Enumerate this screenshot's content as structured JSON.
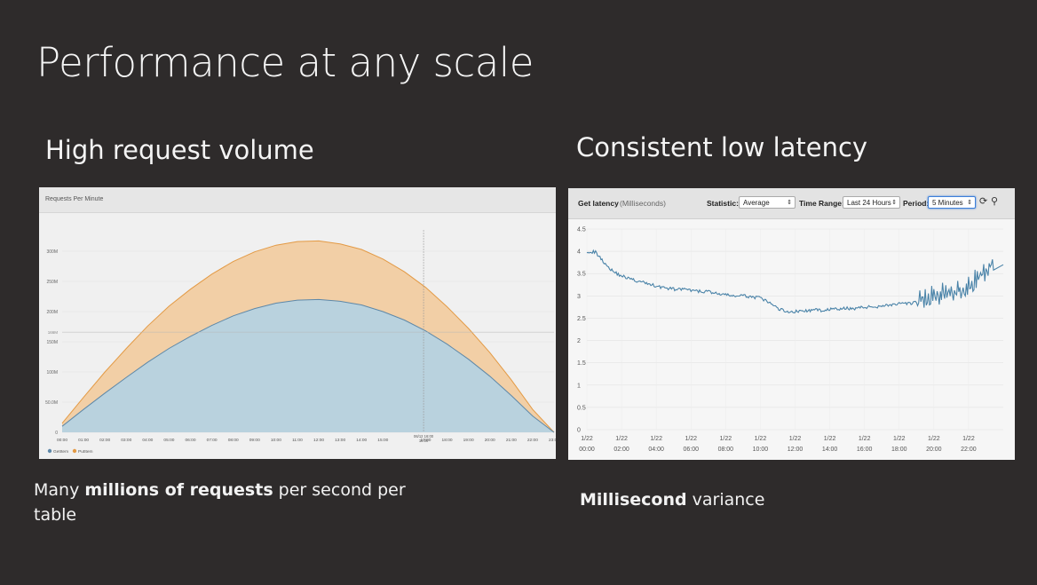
{
  "slide": {
    "title": "Performance at any scale",
    "left_heading": "High request volume",
    "right_heading": "Consistent low latency",
    "left_caption": {
      "pre": "Many ",
      "bold": "millions of requests",
      "post": " per second per table"
    },
    "right_caption": {
      "bold": "Millisecond",
      "post": " variance"
    }
  },
  "colors": {
    "background": "#2e2b2b",
    "gets_fill": "#b9d2de",
    "gets_line": "#5e88a8",
    "puts_fill": "#f2cfa6",
    "puts_line": "#e39a45",
    "latency_line": "#4a83a8"
  },
  "chart_data": [
    {
      "type": "area",
      "title": "Requests Per Minute",
      "stacked": true,
      "x": [
        "00:00",
        "01:00",
        "02:00",
        "03:00",
        "04:00",
        "05:00",
        "06:00",
        "07:00",
        "08:00",
        "09:00",
        "10:00",
        "11:00",
        "12:00",
        "13:00",
        "14:00",
        "15:00",
        "16:00",
        "17:00",
        "18:00",
        "19:00",
        "20:00",
        "21:00",
        "22:00",
        "23:00"
      ],
      "series": [
        {
          "name": "GetItem",
          "values": [
            10,
            38,
            65,
            91,
            116,
            139,
            159,
            177,
            193,
            205,
            214,
            219,
            220,
            217,
            211,
            200,
            186,
            168,
            146,
            121,
            93,
            61,
            27,
            0
          ]
        },
        {
          "name": "PutItem",
          "values": [
            5,
            20,
            35,
            48,
            60,
            70,
            78,
            85,
            90,
            94,
            96,
            97,
            97,
            95,
            92,
            87,
            80,
            72,
            62,
            51,
            39,
            26,
            11,
            0
          ]
        }
      ],
      "ylim": [
        0,
        350
      ],
      "y_tick_labels": [
        "0",
        "50.0M",
        "100M",
        "150M",
        "200M",
        "250M",
        "300M"
      ],
      "y_tick_values": [
        0,
        50,
        100,
        150,
        200,
        250,
        300
      ],
      "reference_line": {
        "value": 166,
        "label": "166M"
      },
      "cursor": {
        "x": 16.9,
        "label_top": "06/12 16:00",
        "label_bottom": "16:00"
      },
      "legend": [
        "GetItem",
        "PutItem"
      ],
      "legend_position": "bottom-left",
      "grid": true
    },
    {
      "type": "line",
      "title": "Get latency",
      "unit": "(Milliseconds)",
      "statistic": "Average",
      "time_range": "Last 24 Hours",
      "period": "5 Minutes",
      "ylim": [
        0,
        4.5
      ],
      "y_tick_labels": [
        "0",
        "0.5",
        "1",
        "1.5",
        "2",
        "2.5",
        "3",
        "3.5",
        "4",
        "4.5"
      ],
      "x_tick_labels": [
        {
          "date": "1/22",
          "time": "00:00"
        },
        {
          "date": "1/22",
          "time": "02:00"
        },
        {
          "date": "1/22",
          "time": "04:00"
        },
        {
          "date": "1/22",
          "time": "06:00"
        },
        {
          "date": "1/22",
          "time": "08:00"
        },
        {
          "date": "1/22",
          "time": "10:00"
        },
        {
          "date": "1/22",
          "time": "12:00"
        },
        {
          "date": "1/22",
          "time": "14:00"
        },
        {
          "date": "1/22",
          "time": "16:00"
        },
        {
          "date": "1/22",
          "time": "18:00"
        },
        {
          "date": "1/22",
          "time": "20:00"
        },
        {
          "date": "1/22",
          "time": "22:00"
        }
      ],
      "series": [
        {
          "x_hours": [
            0,
            0.5,
            1,
            1.5,
            2,
            2.5,
            3,
            3.5,
            4,
            4.5,
            5,
            5.5,
            6,
            6.5,
            7,
            7.5,
            8,
            8.5,
            9,
            9.5,
            10,
            10.5,
            11,
            11.5,
            12,
            12.5,
            13,
            13.5,
            14,
            14.5,
            15,
            15.5,
            16,
            16.5,
            17,
            17.5,
            18,
            18.5,
            19,
            19.5,
            20,
            20.5,
            21,
            21.5,
            22,
            22.5,
            23,
            23.5
          ],
          "values": [
            4.0,
            3.98,
            3.75,
            3.55,
            3.45,
            3.38,
            3.32,
            3.28,
            3.22,
            3.18,
            3.15,
            3.15,
            3.12,
            3.1,
            3.1,
            3.05,
            3.02,
            3.0,
            3.0,
            2.98,
            2.95,
            2.85,
            2.72,
            2.65,
            2.65,
            2.66,
            2.68,
            2.68,
            2.7,
            2.7,
            2.72,
            2.72,
            2.75,
            2.75,
            2.78,
            2.8,
            2.82,
            2.82,
            2.85,
            2.85,
            2.9,
            2.95,
            3.0,
            3.05,
            3.15,
            3.25,
            3.45,
            3.75
          ]
        }
      ],
      "grid": true
    }
  ]
}
